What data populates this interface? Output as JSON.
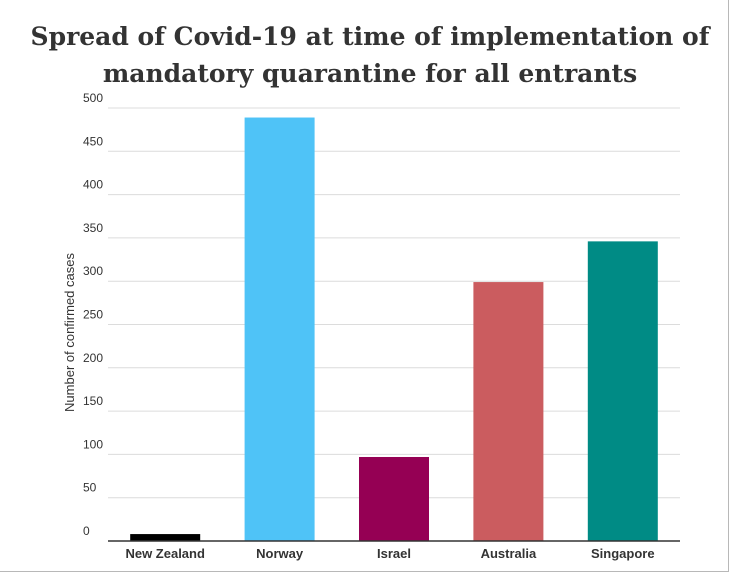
{
  "chart_data": {
    "type": "bar",
    "title_lines": [
      "Spread of Covid-19 at time of implementation of",
      "mandatory quarantine for all entrants"
    ],
    "xlabel": "",
    "ylabel": "Number of confirmed cases",
    "ylim": [
      0,
      500
    ],
    "yticks": [
      "0",
      "50",
      "100",
      "150",
      "200",
      "250",
      "300",
      "350",
      "400",
      "450",
      "500"
    ],
    "grid": true,
    "legend": "none",
    "categories": [
      "New Zealand",
      "Norway",
      "Israel",
      "Australia",
      "Singapore"
    ],
    "values": [
      8,
      489,
      97,
      299,
      346
    ],
    "colors": [
      "#000000",
      "#4FC3F7",
      "#950054",
      "#CB5C5F",
      "#008B85"
    ]
  }
}
